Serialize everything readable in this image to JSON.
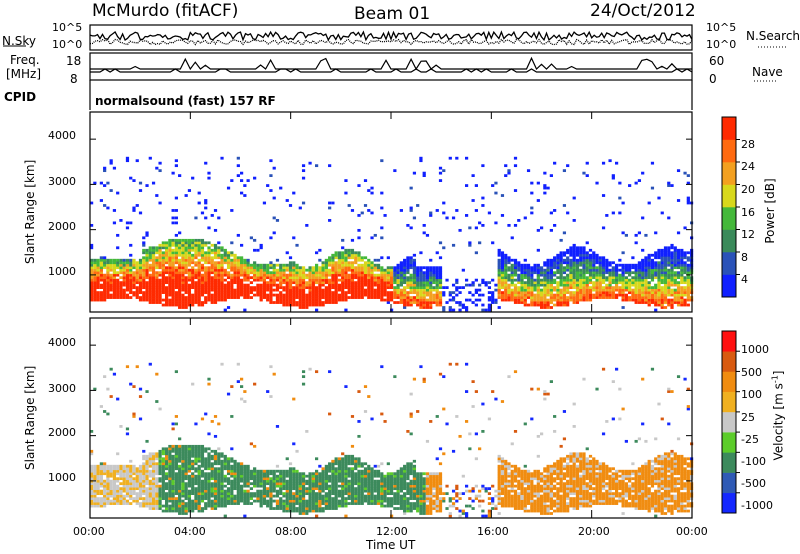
{
  "header": {
    "station": "McMurdo (fitACF)",
    "beam": "Beam 01",
    "date": "24/Oct/2012"
  },
  "noise_panel": {
    "left_label": "N.Sky",
    "right_label": "N.Search",
    "left_ticks": [
      "10^5",
      "10^0"
    ],
    "right_ticks": [
      "10^5",
      "10^0"
    ]
  },
  "freq_panel": {
    "left_label_1": "Freq.",
    "left_label_2": "[MHz]",
    "right_label": "Nave",
    "left_ticks": [
      "18",
      "8"
    ],
    "right_ticks": [
      "60",
      "0"
    ]
  },
  "cpid_panel": {
    "label": "CPID",
    "text": "normalsound (fast) 157 RF"
  },
  "chart_data": [
    {
      "type": "heatmap",
      "name": "power",
      "ylabel": "Slant Range [km]",
      "yticks": [
        1000,
        2000,
        3000,
        4000
      ],
      "ylim": [
        180,
        4600
      ],
      "xlim": [
        0,
        24
      ],
      "colorbar_label": "Power [dB]",
      "colorbar_ticks": [
        "28",
        "24",
        "20",
        "16",
        "12",
        "8",
        "4"
      ],
      "colorbar_colors": [
        "#1020ff",
        "#2a52b8",
        "#3a8a5a",
        "#44b83a",
        "#d8d81c",
        "#f3a020",
        "#ff6a10",
        "#ff2a00"
      ]
    },
    {
      "type": "heatmap",
      "name": "velocity",
      "ylabel": "Slant Range [km]",
      "yticks": [
        1000,
        2000,
        3000,
        4000
      ],
      "ylim": [
        180,
        4600
      ],
      "xlim": [
        0,
        24
      ],
      "xlabel": "Time UT",
      "xticks": [
        "00:00",
        "04:00",
        "08:00",
        "12:00",
        "16:00",
        "20:00",
        "00:00"
      ],
      "colorbar_label_main": "Velocity [m s",
      "colorbar_label_sup": "-1",
      "colorbar_label_end": "]",
      "colorbar_ticks": [
        "1000",
        "500",
        "100",
        "25",
        "-25",
        "-100",
        "-500",
        "-1000"
      ],
      "colorbar_colors": [
        "#1428ff",
        "#2f5ab5",
        "#3c8a5c",
        "#5ccc2a",
        "#c8c8c8",
        "#f0b020",
        "#f08c10",
        "#d85a10",
        "#ff1010"
      ]
    }
  ]
}
